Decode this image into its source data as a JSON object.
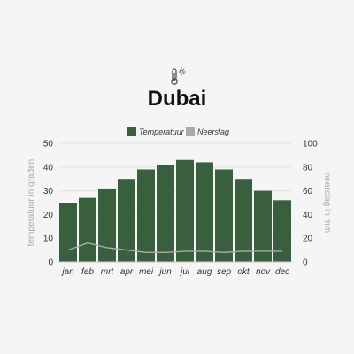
{
  "header": {
    "icon": "thermometer-sun-icon",
    "title": "Dubai"
  },
  "chart_data": {
    "type": "bar",
    "categories": [
      "jan",
      "feb",
      "mrt",
      "apr",
      "mei",
      "jun",
      "jul",
      "aug",
      "sep",
      "okt",
      "nov",
      "dec"
    ],
    "series": [
      {
        "name": "Temperatuur",
        "type": "bar",
        "axis": "left",
        "color": "#3a5f3e",
        "values": [
          25,
          27,
          31,
          35,
          39,
          41,
          43,
          42,
          39,
          35,
          30,
          26
        ]
      },
      {
        "name": "Neerslag",
        "type": "line",
        "axis": "right",
        "color": "#aaaaaa",
        "values": [
          10,
          16,
          12,
          10,
          8,
          8,
          9,
          9,
          8,
          9,
          9,
          9
        ]
      }
    ],
    "y_left": {
      "label": "temperatuur in graden",
      "ticks": [
        0,
        10,
        20,
        30,
        40,
        50
      ],
      "lim": [
        0,
        50
      ]
    },
    "y_right": {
      "label": "neerslag in mm",
      "ticks": [
        0,
        20,
        40,
        60,
        80,
        100
      ],
      "lim": [
        0,
        100
      ]
    },
    "legend_position": "top-center",
    "grid": true
  }
}
